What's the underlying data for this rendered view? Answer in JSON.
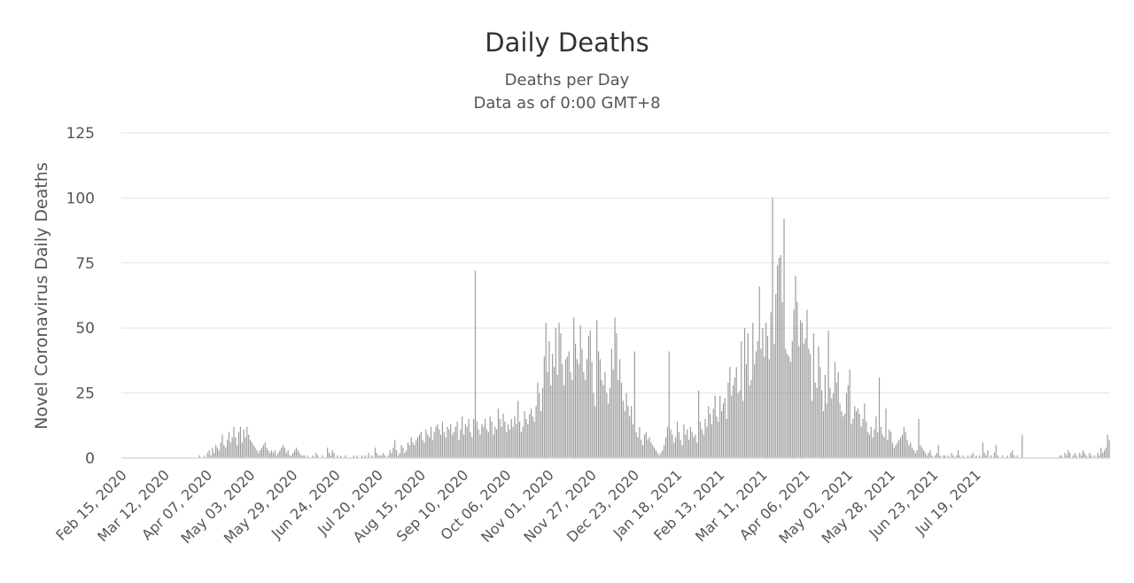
{
  "chart_data": {
    "type": "bar",
    "title": "Daily Deaths",
    "subtitles": [
      "Deaths per Day",
      "Data as of 0:00 GMT+8"
    ],
    "ylabel": "Novel Coronavirus Daily Deaths",
    "xlabel": "",
    "ylim": [
      0,
      125
    ],
    "yticks": [
      0,
      25,
      50,
      75,
      100,
      125
    ],
    "grid": true,
    "legend": "none",
    "color": "#999999",
    "start_date": "Feb 15, 2020",
    "x_tick_labels": [
      "Feb 15, 2020",
      "Mar 12, 2020",
      "Apr 07, 2020",
      "May 03, 2020",
      "May 29, 2020",
      "Jun 24, 2020",
      "Jul 20, 2020",
      "Aug 15, 2020",
      "Sep 10, 2020",
      "Oct 06, 2020",
      "Nov 01, 2020",
      "Nov 27, 2020",
      "Dec 23, 2020",
      "Jan 18, 2021",
      "Feb 13, 2021",
      "Mar 11, 2021",
      "Apr 06, 2021",
      "May 02, 2021",
      "May 28, 2021",
      "Jun 23, 2021",
      "Jul 19, 2021"
    ],
    "x_tick_step_days": 26,
    "values": [
      0,
      0,
      0,
      0,
      0,
      0,
      0,
      0,
      0,
      0,
      0,
      0,
      0,
      0,
      0,
      0,
      0,
      0,
      0,
      0,
      0,
      0,
      0,
      0,
      0,
      0,
      0,
      0,
      0,
      0,
      0,
      0,
      0,
      0,
      0,
      0,
      0,
      0,
      0,
      0,
      0,
      0,
      0,
      0,
      0,
      0,
      0,
      1,
      0,
      0,
      1,
      0,
      2,
      3,
      1,
      4,
      2,
      5,
      4,
      3,
      6,
      9,
      5,
      4,
      7,
      10,
      6,
      8,
      12,
      8,
      5,
      10,
      12,
      6,
      11,
      8,
      12,
      9,
      7,
      6,
      5,
      4,
      3,
      2,
      3,
      4,
      5,
      6,
      4,
      3,
      2,
      3,
      2,
      3,
      1,
      2,
      3,
      4,
      5,
      4,
      2,
      3,
      1,
      1,
      2,
      3,
      4,
      3,
      2,
      1,
      1,
      1,
      0,
      1,
      0,
      0,
      1,
      0,
      2,
      1,
      0,
      0,
      1,
      0,
      0,
      4,
      2,
      1,
      3,
      2,
      0,
      1,
      0,
      1,
      0,
      0,
      1,
      0,
      0,
      0,
      0,
      1,
      0,
      1,
      0,
      0,
      1,
      0,
      1,
      0,
      2,
      0,
      1,
      0,
      4,
      2,
      1,
      1,
      1,
      2,
      1,
      0,
      1,
      3,
      2,
      4,
      7,
      3,
      1,
      2,
      5,
      4,
      2,
      3,
      6,
      5,
      8,
      6,
      5,
      7,
      8,
      9,
      10,
      7,
      6,
      11,
      9,
      8,
      12,
      7,
      10,
      12,
      13,
      11,
      9,
      14,
      10,
      8,
      12,
      11,
      13,
      9,
      10,
      12,
      14,
      7,
      11,
      16,
      9,
      13,
      12,
      15,
      10,
      8,
      15,
      72,
      14,
      11,
      9,
      13,
      12,
      15,
      11,
      10,
      16,
      14,
      9,
      12,
      11,
      19,
      15,
      12,
      17,
      14,
      10,
      13,
      11,
      15,
      12,
      16,
      13,
      22,
      14,
      10,
      12,
      18,
      15,
      13,
      17,
      19,
      16,
      14,
      20,
      29,
      25,
      18,
      27,
      39,
      52,
      33,
      45,
      28,
      40,
      35,
      50,
      32,
      52,
      48,
      36,
      28,
      38,
      39,
      41,
      33,
      30,
      54,
      44,
      38,
      36,
      51,
      42,
      33,
      30,
      38,
      47,
      49,
      37,
      25,
      20,
      53,
      41,
      38,
      30,
      28,
      33,
      25,
      21,
      27,
      42,
      34,
      54,
      48,
      30,
      38,
      29,
      22,
      18,
      25,
      20,
      16,
      20,
      13,
      41,
      10,
      8,
      12,
      7,
      5,
      9,
      10,
      7,
      8,
      6,
      5,
      4,
      3,
      2,
      1,
      2,
      3,
      5,
      8,
      12,
      41,
      11,
      9,
      6,
      8,
      14,
      10,
      7,
      5,
      13,
      9,
      11,
      7,
      12,
      10,
      8,
      9,
      6,
      26,
      14,
      11,
      9,
      15,
      12,
      20,
      17,
      13,
      19,
      24,
      16,
      14,
      24,
      18,
      21,
      23,
      15,
      29,
      35,
      24,
      28,
      31,
      35,
      25,
      26,
      45,
      22,
      50,
      36,
      48,
      28,
      30,
      52,
      36,
      41,
      45,
      66,
      42,
      50,
      39,
      52,
      47,
      38,
      56,
      100,
      44,
      63,
      74,
      77,
      78,
      60,
      92,
      42,
      40,
      39,
      37,
      45,
      57,
      70,
      60,
      43,
      53,
      52,
      44,
      46,
      57,
      42,
      40,
      22,
      48,
      29,
      27,
      43,
      35,
      26,
      18,
      32,
      21,
      49,
      27,
      23,
      25,
      37,
      29,
      33,
      21,
      18,
      16,
      17,
      25,
      28,
      34,
      13,
      15,
      20,
      18,
      19,
      17,
      12,
      15,
      21,
      14,
      10,
      9,
      12,
      8,
      11,
      16,
      10,
      31,
      12,
      9,
      8,
      19,
      7,
      11,
      10,
      6,
      4,
      5,
      6,
      7,
      8,
      9,
      12,
      10,
      7,
      5,
      6,
      4,
      3,
      2,
      3,
      15,
      5,
      4,
      3,
      2,
      1,
      2,
      3,
      1,
      0,
      1,
      2,
      5,
      1,
      0,
      1,
      1,
      0,
      1,
      0,
      2,
      1,
      0,
      1,
      3,
      1,
      0,
      1,
      0,
      0,
      1,
      0,
      1,
      2,
      0,
      1,
      0,
      1,
      0,
      6,
      2,
      1,
      3,
      0,
      1,
      0,
      2,
      5,
      1,
      0,
      0,
      1,
      0,
      0,
      1,
      0,
      2,
      3,
      1,
      0,
      1,
      0,
      0,
      9,
      0,
      0,
      0,
      0,
      0,
      0,
      0,
      0,
      0,
      0,
      0,
      0,
      0,
      0,
      0,
      0,
      0,
      0,
      0,
      0,
      0,
      0,
      1,
      1,
      0,
      2,
      1,
      3,
      2,
      0,
      1,
      2,
      1,
      0,
      2,
      1,
      3,
      2,
      1,
      0,
      2,
      1,
      0,
      1,
      0,
      2,
      1,
      4,
      2,
      3,
      4,
      9,
      7
    ]
  }
}
